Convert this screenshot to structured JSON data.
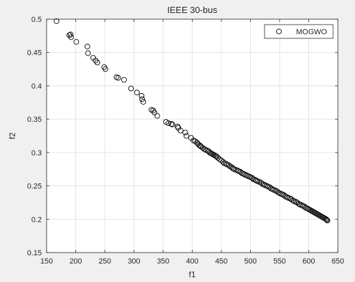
{
  "chart_data": {
    "type": "scatter",
    "title": "IEEE 30-bus",
    "xlabel": "f1",
    "ylabel": "f2",
    "xlim": [
      150,
      650
    ],
    "ylim": [
      0.15,
      0.5
    ],
    "xticks": [
      150,
      200,
      250,
      300,
      350,
      400,
      450,
      500,
      550,
      600,
      650
    ],
    "yticks": [
      0.15,
      0.2,
      0.25,
      0.3,
      0.35,
      0.4,
      0.45,
      0.5
    ],
    "ytick_labels": [
      "0.15",
      "0.2",
      "0.25",
      "0.3",
      "0.35",
      "0.4",
      "0.45",
      "0.5"
    ],
    "grid": true,
    "legend_position": "top-right",
    "marker": "open-circle",
    "colors": {
      "marker": "#000000",
      "grid": "#dedede",
      "axes": "#262626",
      "plot_bg": "#ffffff",
      "figure_bg": "#f0f0f0"
    },
    "series": [
      {
        "name": "MOGWO",
        "x": [
          167,
          189,
          191,
          192,
          201,
          220,
          221,
          230,
          234,
          237,
          249,
          251,
          270,
          273,
          283,
          295,
          305,
          313,
          314,
          316,
          330,
          333,
          335,
          340,
          355,
          359,
          364,
          366,
          375,
          376,
          380,
          388,
          390,
          398,
          402,
          405,
          408,
          410,
          412,
          414,
          415,
          418,
          421,
          423,
          426,
          428,
          430,
          432,
          434,
          436,
          438,
          440,
          442,
          444,
          447,
          450,
          453,
          455,
          458,
          460,
          463,
          465,
          468,
          470,
          472,
          475,
          478,
          480,
          483,
          485,
          488,
          490,
          493,
          495,
          498,
          500,
          503,
          505,
          508,
          510,
          512,
          515,
          518,
          520,
          523,
          525,
          528,
          530,
          533,
          535,
          538,
          540,
          543,
          545,
          548,
          550,
          553,
          555,
          558,
          560,
          563,
          565,
          568,
          570,
          573,
          575,
          578,
          580,
          583,
          585,
          588,
          590,
          593,
          595,
          598,
          600,
          602,
          604,
          606,
          608,
          610,
          612,
          614,
          616,
          618,
          620,
          622,
          624,
          626,
          628,
          630,
          631,
          632
        ],
        "y": [
          0.497,
          0.476,
          0.477,
          0.473,
          0.466,
          0.459,
          0.449,
          0.442,
          0.438,
          0.435,
          0.428,
          0.425,
          0.413,
          0.412,
          0.409,
          0.396,
          0.39,
          0.385,
          0.38,
          0.376,
          0.364,
          0.363,
          0.36,
          0.355,
          0.346,
          0.344,
          0.343,
          0.342,
          0.339,
          0.337,
          0.333,
          0.33,
          0.325,
          0.322,
          0.318,
          0.317,
          0.315,
          0.313,
          0.311,
          0.31,
          0.309,
          0.307,
          0.305,
          0.304,
          0.303,
          0.302,
          0.3,
          0.299,
          0.298,
          0.297,
          0.296,
          0.295,
          0.294,
          0.292,
          0.29,
          0.288,
          0.286,
          0.284,
          0.283,
          0.282,
          0.281,
          0.279,
          0.278,
          0.276,
          0.275,
          0.274,
          0.273,
          0.272,
          0.271,
          0.269,
          0.268,
          0.267,
          0.266,
          0.265,
          0.264,
          0.263,
          0.262,
          0.26,
          0.259,
          0.258,
          0.257,
          0.256,
          0.255,
          0.253,
          0.252,
          0.251,
          0.25,
          0.249,
          0.248,
          0.246,
          0.245,
          0.244,
          0.243,
          0.242,
          0.24,
          0.239,
          0.238,
          0.237,
          0.236,
          0.234,
          0.233,
          0.232,
          0.231,
          0.23,
          0.228,
          0.227,
          0.226,
          0.225,
          0.223,
          0.222,
          0.221,
          0.22,
          0.219,
          0.217,
          0.216,
          0.215,
          0.214,
          0.213,
          0.212,
          0.211,
          0.21,
          0.209,
          0.208,
          0.207,
          0.206,
          0.205,
          0.204,
          0.203,
          0.202,
          0.201,
          0.2,
          0.199,
          0.198
        ]
      }
    ]
  }
}
